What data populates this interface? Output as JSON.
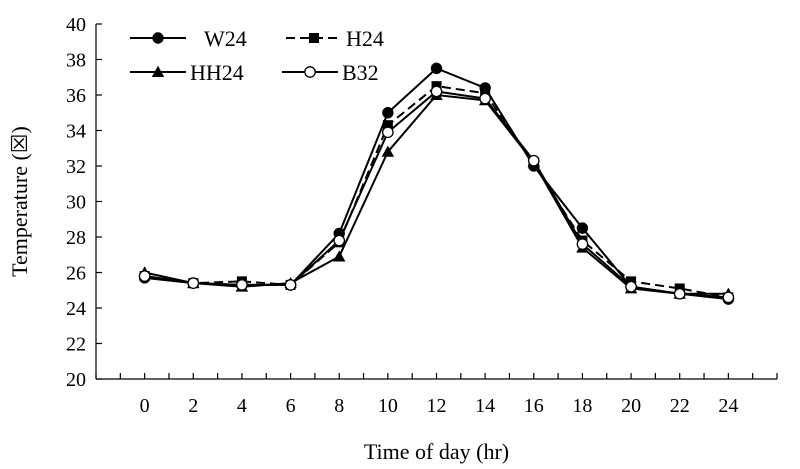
{
  "chart_data": {
    "type": "line",
    "xlabel": "Time of day (hr)",
    "ylabel": "Temperature (☒)",
    "x": [
      0,
      2,
      4,
      6,
      8,
      10,
      12,
      14,
      16,
      18,
      20,
      22,
      24
    ],
    "xlim": [
      -2,
      26
    ],
    "ylim": [
      20,
      40
    ],
    "yticks": [
      20,
      22,
      24,
      26,
      28,
      30,
      32,
      34,
      36,
      38,
      40
    ],
    "xticks": [
      0,
      2,
      4,
      6,
      8,
      10,
      12,
      14,
      16,
      18,
      20,
      22,
      24
    ],
    "grid": false,
    "legend_position": "top-left",
    "series": [
      {
        "name": "W24",
        "marker": "circle-filled",
        "dash": "solid",
        "values": [
          25.7,
          25.4,
          25.3,
          25.3,
          28.2,
          35.0,
          37.5,
          36.4,
          32.0,
          28.5,
          25.2,
          24.8,
          24.5
        ]
      },
      {
        "name": "H24",
        "marker": "square-filled",
        "dash": "dashed",
        "values": [
          25.8,
          25.4,
          25.5,
          25.3,
          27.7,
          34.3,
          36.5,
          36.1,
          32.1,
          27.8,
          25.5,
          25.1,
          24.6
        ]
      },
      {
        "name": "HH24",
        "marker": "triangle-filled",
        "dash": "solid",
        "values": [
          26.0,
          25.4,
          25.2,
          25.4,
          26.9,
          32.8,
          36.0,
          35.7,
          32.2,
          27.4,
          25.1,
          24.8,
          24.8
        ]
      },
      {
        "name": "B32",
        "marker": "circle-open",
        "dash": "solid",
        "values": [
          25.8,
          25.4,
          25.3,
          25.3,
          27.8,
          33.9,
          36.2,
          35.8,
          32.3,
          27.6,
          25.2,
          24.8,
          24.6
        ]
      }
    ],
    "colors": {
      "line": "#000000",
      "background": "#ffffff"
    }
  }
}
